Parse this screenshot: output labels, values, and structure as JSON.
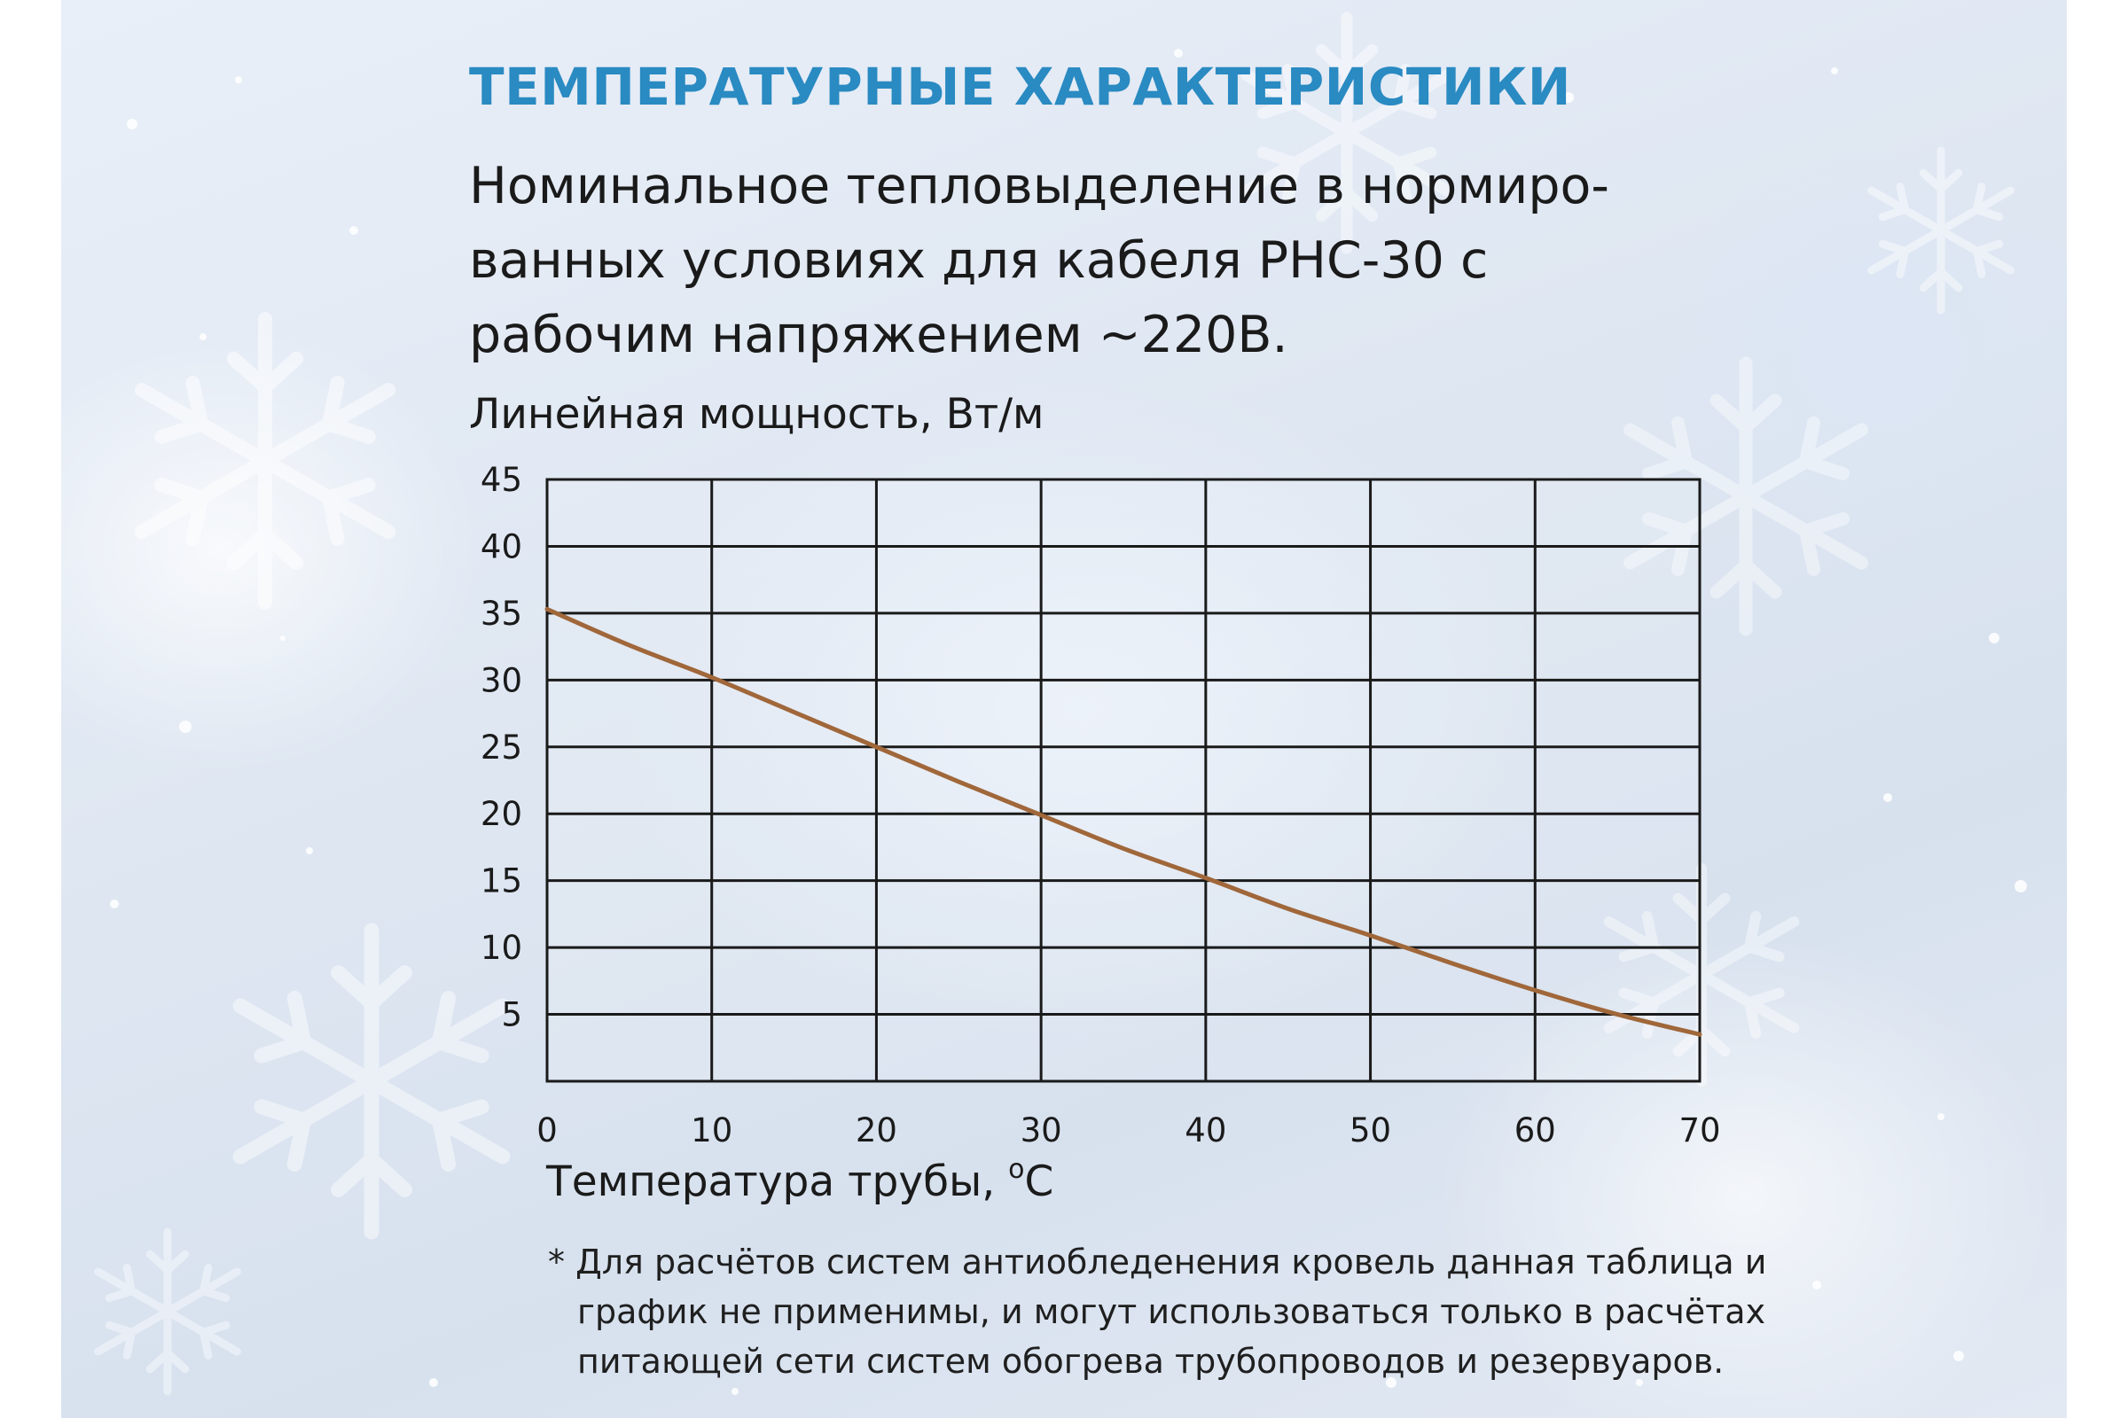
{
  "heading": "ТЕМПЕРАТУРНЫЕ ХАРАКТЕРИСТИКИ",
  "subtitle_lines": [
    "Номинальное тепловыделение в нормиро-",
    "ванных условиях для кабеля РНС-30 с",
    "рабочим напряжением ~220В."
  ],
  "note_lines": [
    "* Для расчётов систем антиобледенения кровель данная таблица и",
    "график не применимы, и могут использоваться только в расчётах",
    "питающей сети систем обогрева трубопроводов и резервуаров."
  ],
  "colors": {
    "heading": "#2a8ac2",
    "curve": "#a0673a",
    "grid": "#1a1a1a"
  },
  "chart_data": {
    "type": "line",
    "ylabel": "Линейная мощность, Вт/м",
    "xlabel": "Температура трубы, ",
    "xlabel_unit_sup": "o",
    "xlabel_unit": "C",
    "xlim": [
      0,
      70
    ],
    "ylim": [
      0,
      45
    ],
    "x_ticks": [
      0,
      10,
      20,
      30,
      40,
      50,
      60,
      70
    ],
    "y_ticks": [
      5,
      10,
      15,
      20,
      25,
      30,
      35,
      40,
      45
    ],
    "grid": true,
    "series": [
      {
        "x": [
          0,
          5,
          10,
          15,
          20,
          25,
          30,
          35,
          40,
          45,
          50,
          55,
          60,
          65,
          70
        ],
        "values": [
          35.3,
          32.6,
          30.2,
          27.6,
          25.0,
          22.4,
          19.9,
          17.4,
          15.2,
          12.9,
          10.9,
          8.8,
          6.8,
          5.0,
          3.5
        ]
      }
    ]
  }
}
